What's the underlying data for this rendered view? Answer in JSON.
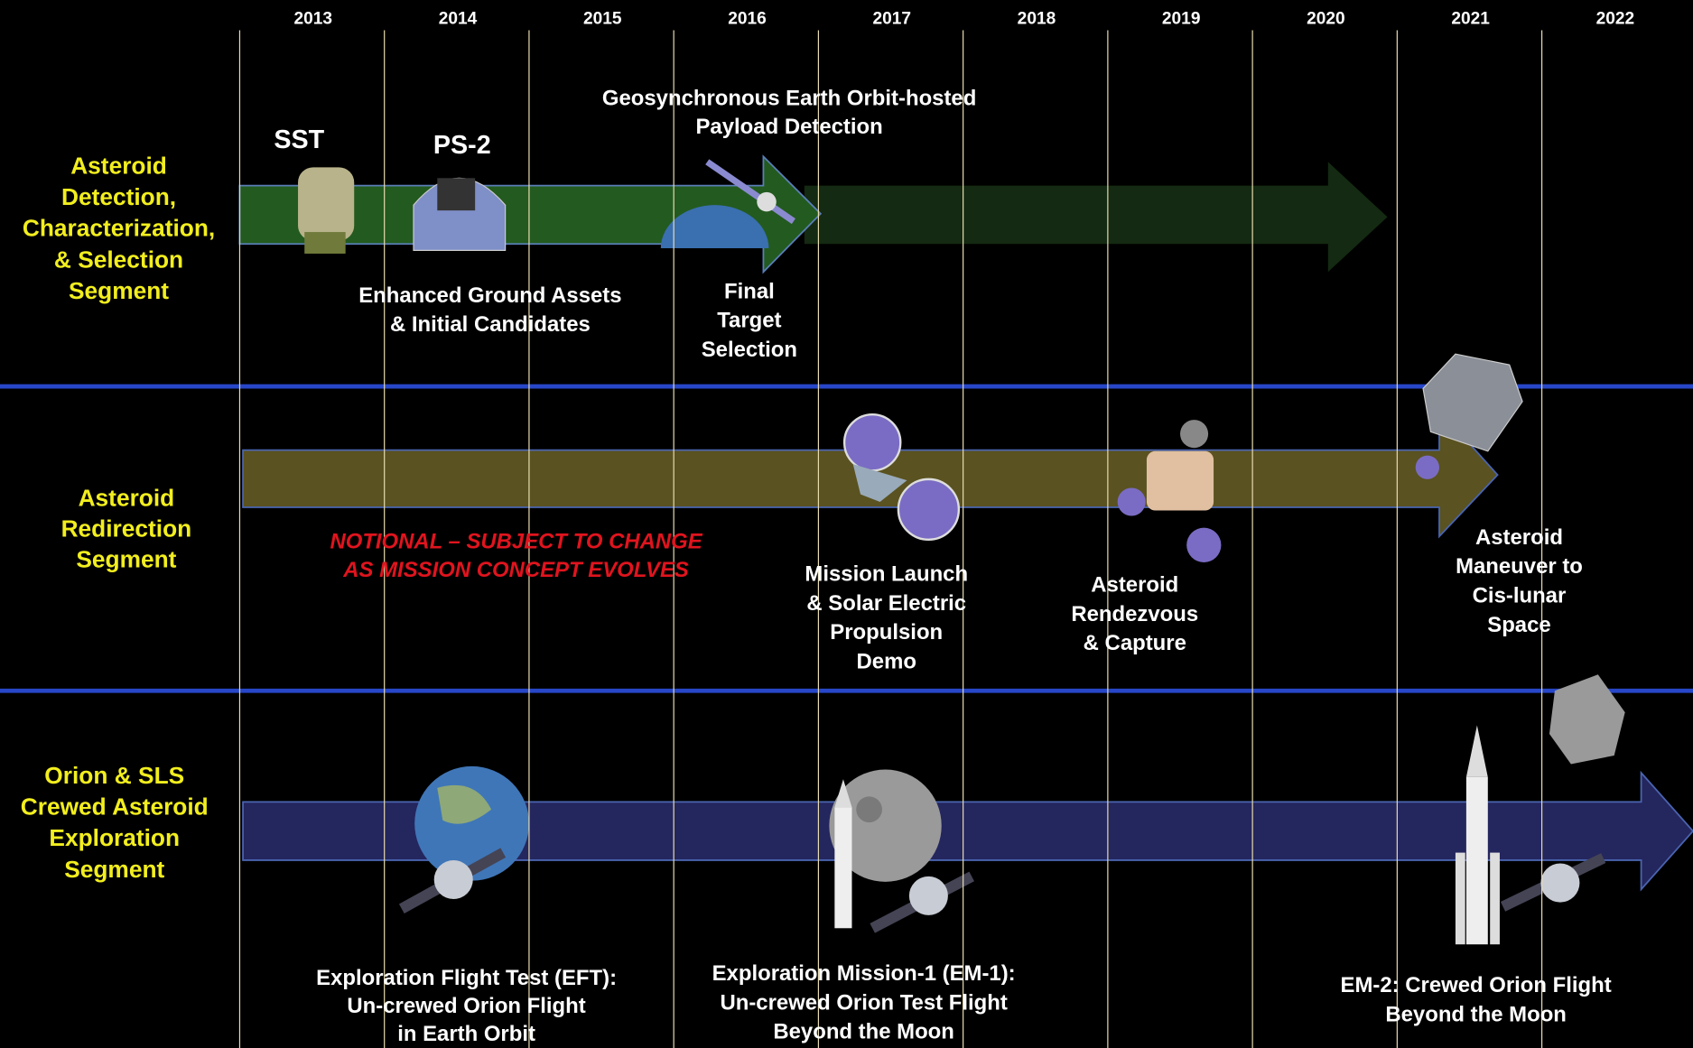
{
  "years": [
    2013,
    2014,
    2015,
    2016,
    2017,
    2018,
    2019,
    2020,
    2021,
    2022
  ],
  "segments": [
    {
      "title_lines": [
        "Asteroid",
        "Detection,",
        "Characterization,",
        "& Selection",
        "Segment"
      ],
      "milestones": [
        {
          "lines": [
            "SST"
          ]
        },
        {
          "lines": [
            "PS-2"
          ]
        },
        {
          "lines": [
            "Geosynchronous Earth Orbit-hosted",
            "Payload Detection"
          ]
        },
        {
          "lines": [
            "Enhanced Ground Assets",
            "& Initial Candidates"
          ]
        },
        {
          "lines": [
            "Final",
            "Target",
            "Selection"
          ]
        }
      ]
    },
    {
      "title_lines": [
        "Asteroid",
        "Redirection",
        "Segment"
      ],
      "notice_lines": [
        "NOTIONAL – SUBJECT TO CHANGE",
        "AS MISSION CONCEPT EVOLVES"
      ],
      "milestones": [
        {
          "lines": [
            "Mission Launch",
            "& Solar Electric",
            "Propulsion",
            "Demo"
          ]
        },
        {
          "lines": [
            "Asteroid",
            "Rendezvous",
            "& Capture"
          ]
        },
        {
          "lines": [
            "Asteroid",
            "Maneuver to",
            "Cis-lunar",
            "Space"
          ]
        }
      ]
    },
    {
      "title_lines": [
        "Orion & SLS",
        "Crewed Asteroid",
        "Exploration",
        "Segment"
      ],
      "milestones": [
        {
          "lines": [
            "Exploration Flight Test (EFT):",
            "Un-crewed Orion Flight",
            "in Earth Orbit"
          ]
        },
        {
          "lines": [
            "Exploration Mission-1 (EM-1):",
            "Un-crewed Orion Test Flight",
            "Beyond the Moon"
          ]
        },
        {
          "lines": [
            "EM-2: Crewed Orion Flight",
            "Beyond the Moon"
          ]
        }
      ]
    }
  ]
}
